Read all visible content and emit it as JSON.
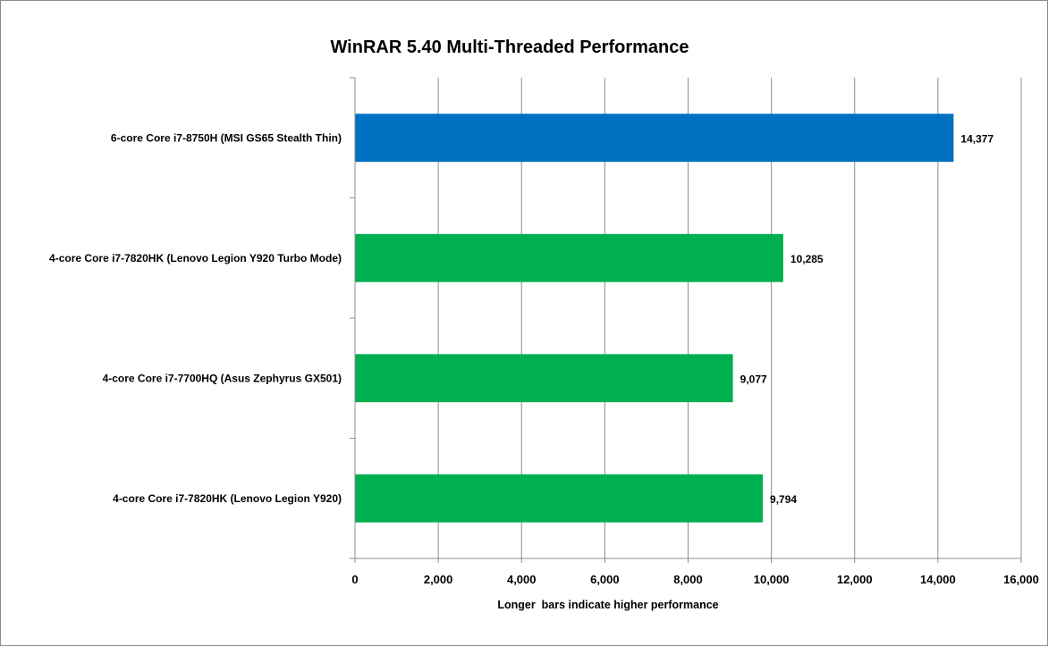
{
  "chart_data": {
    "type": "bar",
    "orientation": "horizontal",
    "title": "WinRAR 5.40 Multi-Threaded Performance",
    "xlabel": "Longer  bars indicate higher performance",
    "ylabel": "",
    "categories": [
      "6-core Core i7-8750H (MSI GS65 Stealth Thin)",
      "4-core Core i7-7820HK (Lenovo Legion Y920 Turbo Mode)",
      "4-core Core i7-7700HQ (Asus Zephyrus GX501)",
      "4-core Core i7-7820HK (Lenovo Legion Y920)"
    ],
    "values": [
      14377,
      10285,
      9077,
      9794
    ],
    "data_labels": [
      "14,377",
      "10,285",
      "9,077",
      "9,794"
    ],
    "bar_colors": [
      "#0070c0",
      "#00b050",
      "#00b050",
      "#00b050"
    ],
    "xlim": [
      0,
      16000
    ],
    "xticks": [
      0,
      2000,
      4000,
      6000,
      8000,
      10000,
      12000,
      14000,
      16000
    ],
    "xtick_labels": [
      "0",
      "2,000",
      "4,000",
      "6,000",
      "8,000",
      "10,000",
      "12,000",
      "14,000",
      "16,000"
    ],
    "grid": true,
    "legend": "none"
  }
}
